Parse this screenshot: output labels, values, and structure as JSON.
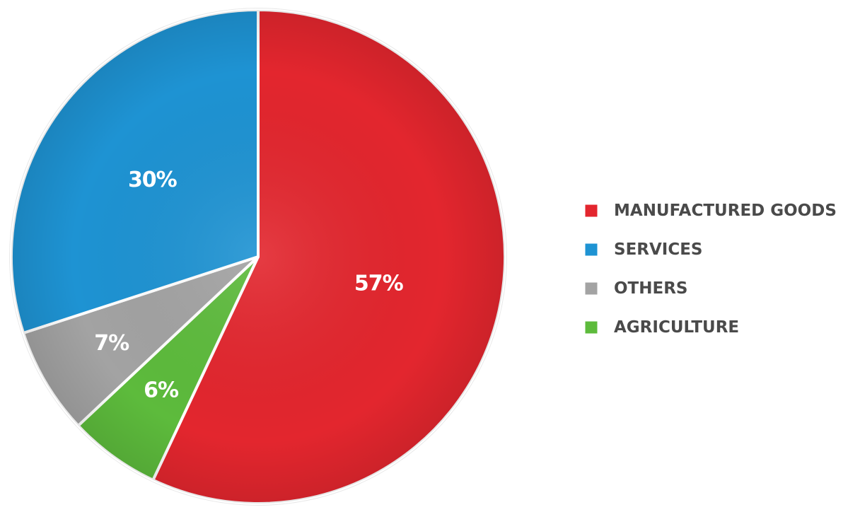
{
  "chart_data": {
    "type": "pie",
    "start_angle": 0,
    "direction": "clockwise",
    "slices": [
      {
        "label": "MANUFACTURED GOODS",
        "value": 57,
        "value_label": "57%",
        "color": "#e3262e"
      },
      {
        "label": "AGRICULTURE",
        "value": 6,
        "value_label": "6%",
        "color": "#5dbb3c"
      },
      {
        "label": "OTHERS",
        "value": 7,
        "value_label": "7%",
        "color": "#a3a3a3"
      },
      {
        "label": "SERVICES",
        "value": 30,
        "value_label": "30%",
        "color": "#1e93d3"
      }
    ],
    "legend": {
      "placement": "right",
      "items": [
        {
          "label": "MANUFACTURED GOODS",
          "color": "#e3262e"
        },
        {
          "label": "SERVICES",
          "color": "#1e93d3"
        },
        {
          "label": "OTHERS",
          "color": "#a3a3a3"
        },
        {
          "label": "AGRICULTURE",
          "color": "#5dbb3c"
        }
      ]
    }
  }
}
